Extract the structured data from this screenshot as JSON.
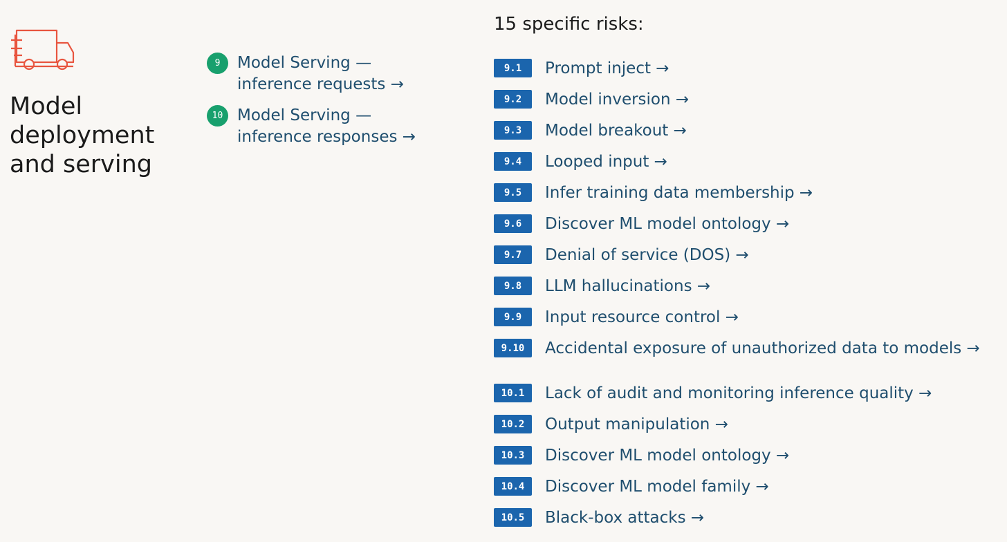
{
  "icon": {
    "name": "delivery-truck-icon",
    "color": "#e8553f"
  },
  "section": {
    "title": "Model deployment and serving"
  },
  "components": [
    {
      "number": "9",
      "label": "Model Serving — inference requests →"
    },
    {
      "number": "10",
      "label": "Model Serving — inference responses →"
    }
  ],
  "risks_heading": "15 specific risks:",
  "risks": [
    {
      "id": "9.1",
      "label": "Prompt inject →"
    },
    {
      "id": "9.2",
      "label": "Model inversion →"
    },
    {
      "id": "9.3",
      "label": "Model breakout →"
    },
    {
      "id": "9.4",
      "label": "Looped input →"
    },
    {
      "id": "9.5",
      "label": "Infer training data membership →"
    },
    {
      "id": "9.6",
      "label": "Discover ML model ontology →"
    },
    {
      "id": "9.7",
      "label": "Denial of service (DOS) →"
    },
    {
      "id": "9.8",
      "label": "LLM hallucinations →"
    },
    {
      "id": "9.9",
      "label": "Input resource control →"
    },
    {
      "id": "9.10",
      "label": "Accidental exposure of unauthorized data to models →"
    },
    {
      "id": "10.1",
      "label": "Lack of audit and monitoring inference quality →"
    },
    {
      "id": "10.2",
      "label": "Output manipulation →"
    },
    {
      "id": "10.3",
      "label": "Discover ML model ontology →"
    },
    {
      "id": "10.4",
      "label": "Discover ML model family →"
    },
    {
      "id": "10.5",
      "label": "Black-box attacks →"
    }
  ],
  "colors": {
    "background": "#f9f7f4",
    "component_badge": "#18a06d",
    "risk_badge": "#1b65ad",
    "link_text": "#1f4e6e",
    "icon": "#e8553f"
  }
}
